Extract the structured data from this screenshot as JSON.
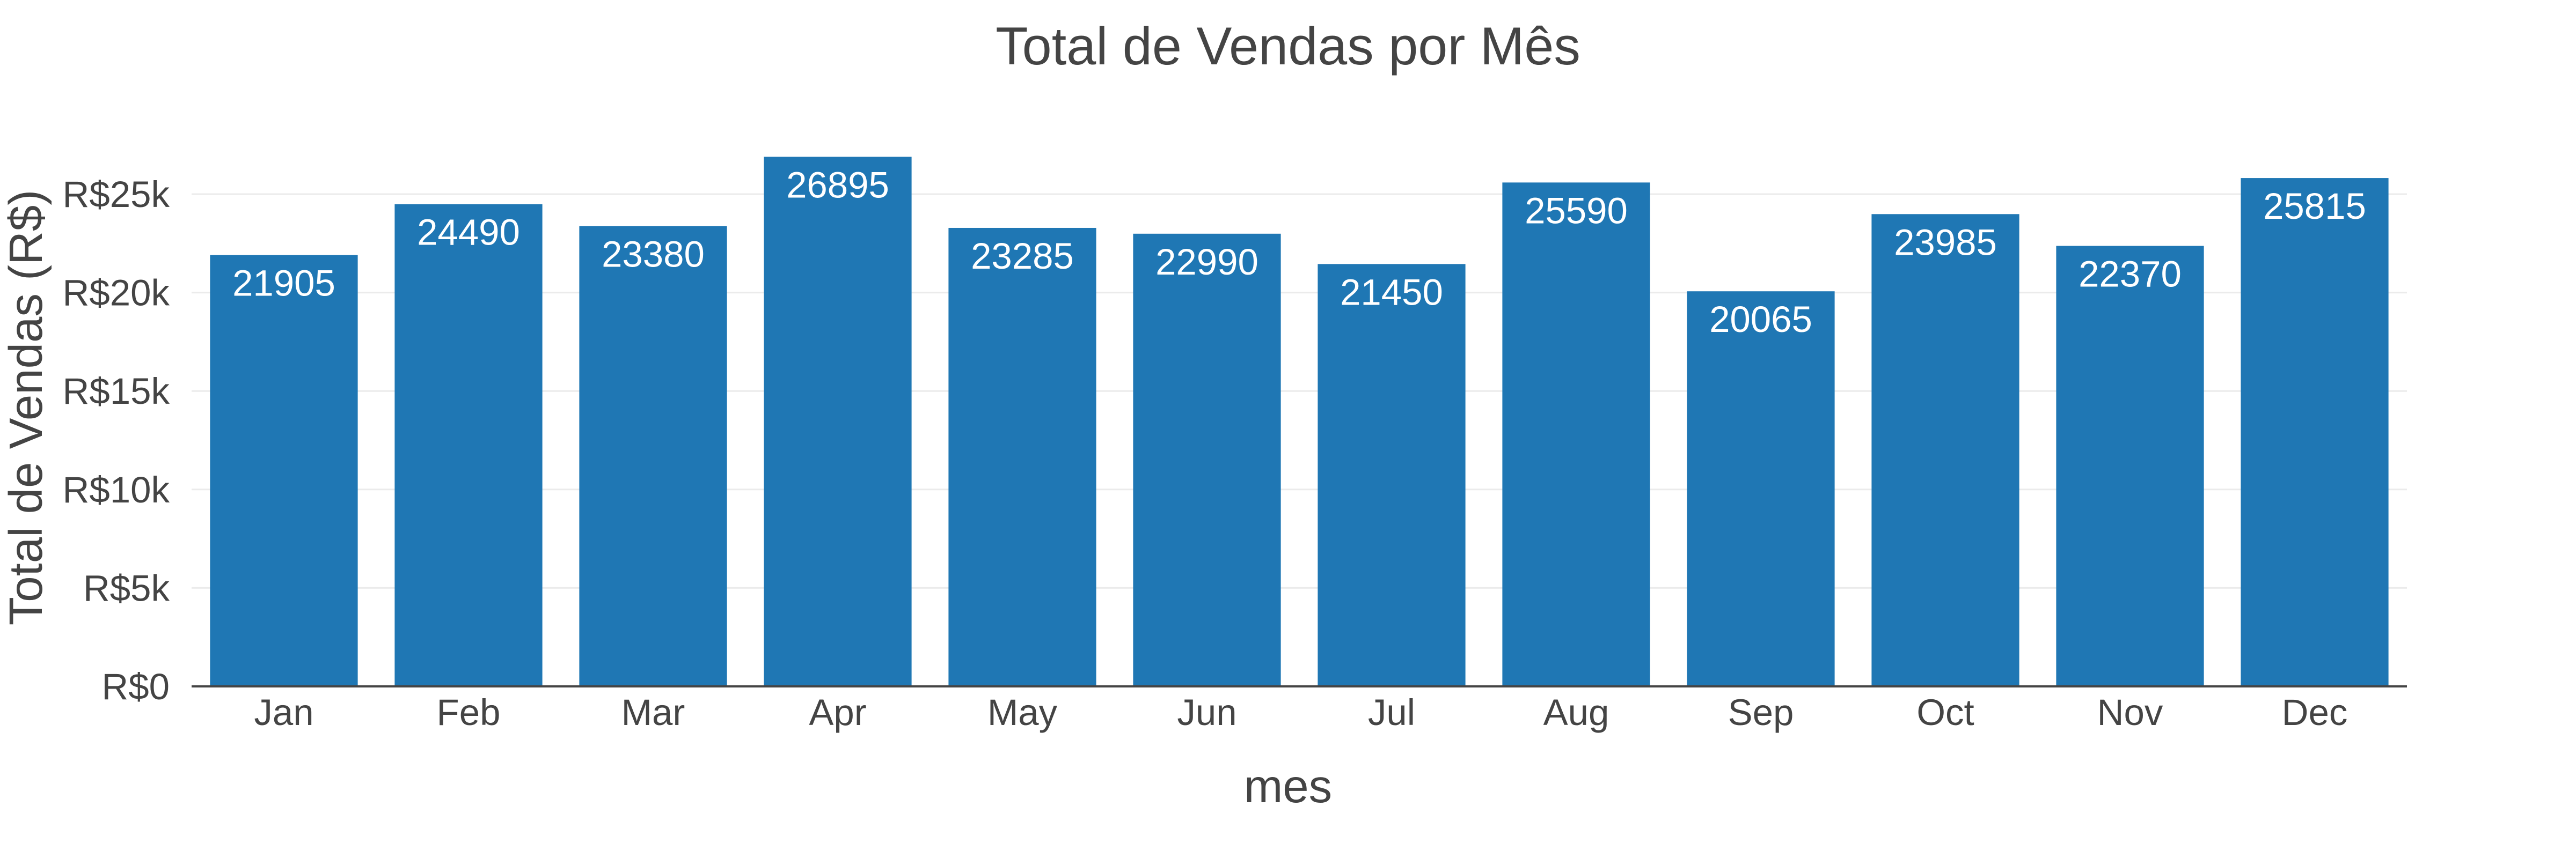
{
  "chart_data": {
    "type": "bar",
    "title": "Total de Vendas por Mês",
    "xlabel": "mes",
    "ylabel": "Total de Vendas (R$)",
    "categories": [
      "Jan",
      "Feb",
      "Mar",
      "Apr",
      "May",
      "Jun",
      "Jul",
      "Aug",
      "Sep",
      "Oct",
      "Nov",
      "Dec"
    ],
    "values": [
      21905,
      24490,
      23380,
      26895,
      23285,
      22990,
      21450,
      25590,
      20065,
      23985,
      22370,
      25815
    ],
    "data_labels": [
      "21905",
      "24490",
      "23380",
      "26895",
      "23285",
      "22990",
      "21450",
      "25590",
      "20065",
      "23985",
      "22370",
      "25815"
    ],
    "ylim": [
      0,
      27000
    ],
    "yticks": [
      0,
      5000,
      10000,
      15000,
      20000,
      25000
    ],
    "ytick_labels": [
      "R$0",
      "R$5k",
      "R$10k",
      "R$15k",
      "R$20k",
      "R$25k"
    ],
    "grid": true,
    "legend": "none",
    "colors": {
      "bar": "#1f77b4",
      "bar_label": "#ffffff",
      "text": "#444444",
      "grid": "#ebebeb",
      "axis": "#444444"
    }
  }
}
